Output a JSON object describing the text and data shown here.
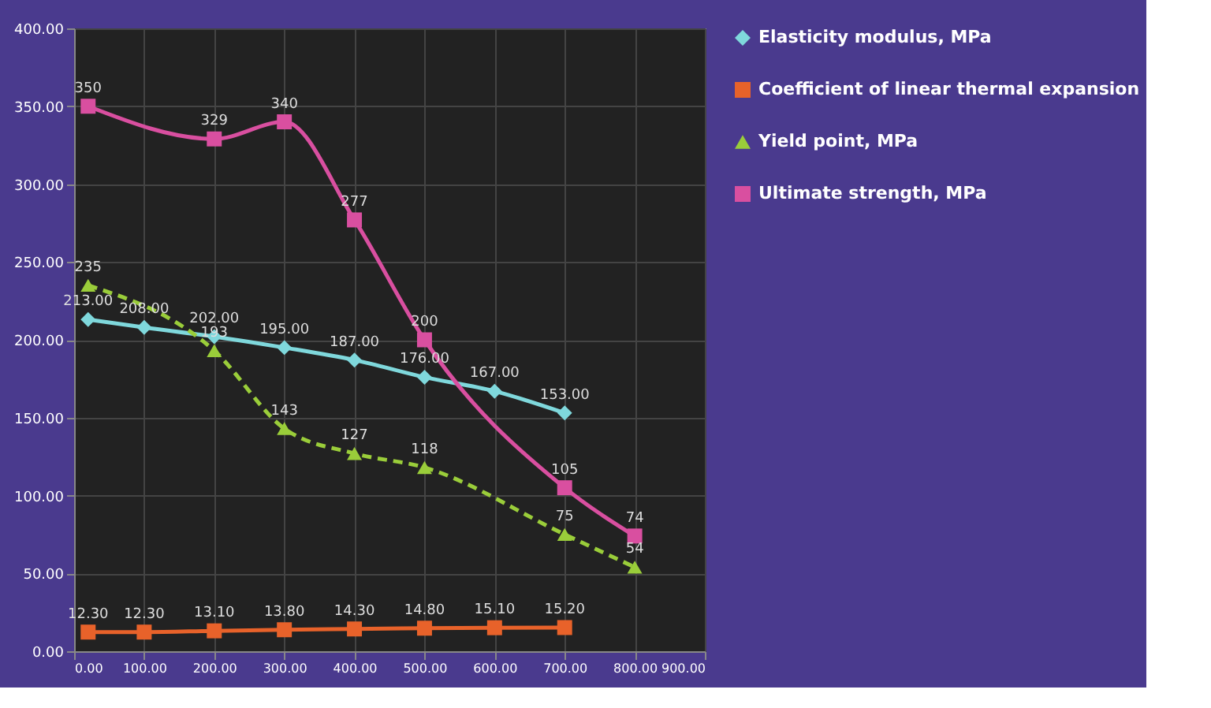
{
  "chart_data": {
    "type": "line",
    "legend": "right",
    "grid": true,
    "xlim": [
      0,
      900
    ],
    "xticks": [
      {
        "value": 0,
        "label": "0.00"
      },
      {
        "value": 100,
        "label": "100.00"
      },
      {
        "value": 200,
        "label": "200.00"
      },
      {
        "value": 300,
        "label": "300.00"
      },
      {
        "value": 400,
        "label": "400.00"
      },
      {
        "value": 500,
        "label": "500.00"
      },
      {
        "value": 600,
        "label": "600.00"
      },
      {
        "value": 700,
        "label": "700.00"
      },
      {
        "value": 800,
        "label": "800.00"
      },
      {
        "value": 900,
        "label": "900.00"
      }
    ],
    "ylim": [
      0,
      400
    ],
    "yticks": [
      {
        "value": 0,
        "label": "0.00"
      },
      {
        "value": 50,
        "label": "50.00"
      },
      {
        "value": 100,
        "label": "100.00"
      },
      {
        "value": 150,
        "label": "150.00"
      },
      {
        "value": 200,
        "label": "200.00"
      },
      {
        "value": 250,
        "label": "250.00"
      },
      {
        "value": 300,
        "label": "300.00"
      },
      {
        "value": 350,
        "label": "350.00"
      },
      {
        "value": 400,
        "label": "400.00"
      }
    ],
    "series": [
      {
        "name": "Elasticity modulus, MPa",
        "color": "#7fd8dc",
        "marker": "diamond",
        "line_style": "solid",
        "x": [
          20,
          100,
          200,
          300,
          400,
          500,
          600,
          700
        ],
        "values": [
          213,
          208,
          202,
          195,
          187,
          176,
          167,
          153
        ],
        "value_labels": [
          "213.00",
          "208.00",
          "202.00",
          "195.00",
          "187.00",
          "176.00",
          "167.00",
          "153.00"
        ]
      },
      {
        "name": "Coefficient of linear thermal expansion",
        "color": "#e8622a",
        "marker": "square",
        "line_style": "solid",
        "x": [
          20,
          100,
          200,
          300,
          400,
          500,
          600,
          700
        ],
        "values": [
          12.3,
          12.3,
          13.1,
          13.8,
          14.3,
          14.8,
          15.1,
          15.2
        ],
        "value_labels": [
          "12.30",
          "12.30",
          "13.10",
          "13.80",
          "14.30",
          "14.80",
          "15.10",
          "15.20"
        ]
      },
      {
        "name": "Yield point, MPa",
        "color": "#9acd3a",
        "marker": "triangle",
        "line_style": "dashed",
        "x": [
          20,
          200,
          300,
          400,
          500,
          700,
          800
        ],
        "values": [
          235,
          193,
          143,
          127,
          118,
          75,
          54
        ],
        "value_labels": [
          "235",
          "193",
          "143",
          "127",
          "118",
          "75",
          "54"
        ]
      },
      {
        "name": "Ultimate strength, MPa",
        "color": "#d94fa0",
        "marker": "square",
        "line_style": "solid",
        "x": [
          20,
          200,
          300,
          400,
          500,
          700,
          800
        ],
        "values": [
          350,
          329,
          340,
          277,
          200,
          105,
          74
        ],
        "value_labels": [
          "350",
          "329",
          "340",
          "277",
          "200",
          "105",
          "74"
        ]
      }
    ]
  }
}
